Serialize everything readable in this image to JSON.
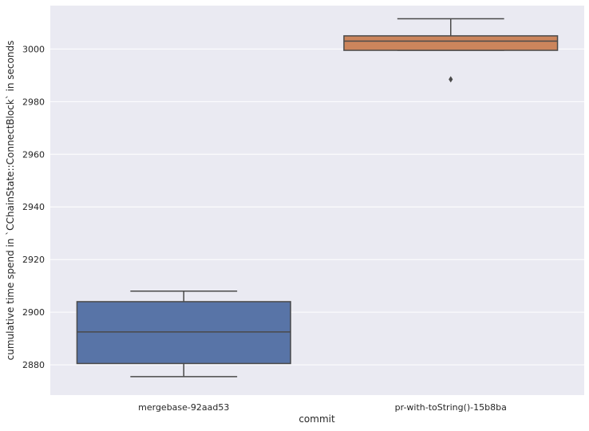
{
  "chart_data": {
    "type": "box",
    "title": "",
    "xlabel": "commit",
    "ylabel": "cumulative time spend in `CChainState::ConnectBlock` in seconds",
    "ylim": [
      2868.5,
      3016.5
    ],
    "yticks": [
      2880,
      2900,
      2920,
      2940,
      2960,
      2980,
      3000
    ],
    "grid": true,
    "categories": [
      "mergebase-92aad53",
      "pr-with-toString()-15b8ba"
    ],
    "boxes": [
      {
        "category": "mergebase-92aad53",
        "whisker_low": 2875.5,
        "q1": 2880.5,
        "median": 2892.5,
        "q3": 2904.0,
        "whisker_high": 2908.0,
        "outliers": [],
        "color": "#5874a7"
      },
      {
        "category": "pr-with-toString()-15b8ba",
        "whisker_low": 2999.5,
        "q1": 2999.5,
        "median": 3003.0,
        "q3": 3005.0,
        "whisker_high": 3011.5,
        "outliers": [
          2988.5
        ],
        "color": "#cc855c"
      }
    ]
  }
}
